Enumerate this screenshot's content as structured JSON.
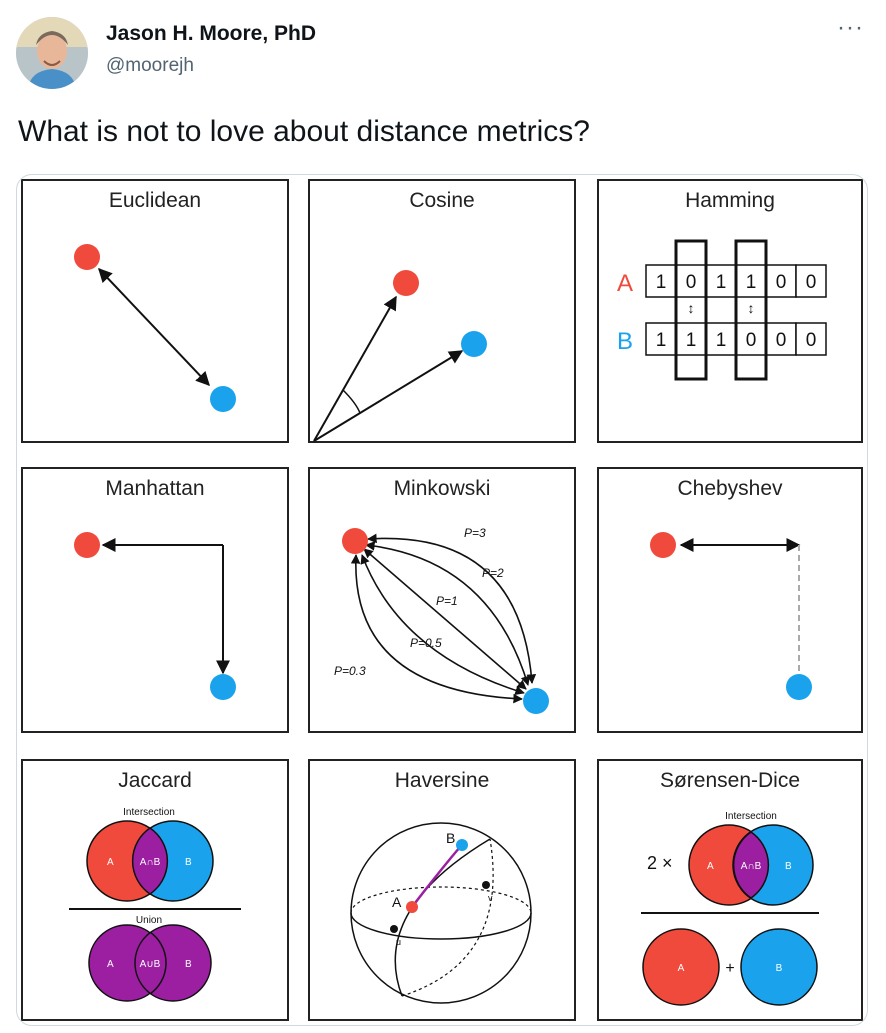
{
  "author": {
    "name": "Jason H. Moore, PhD",
    "handle": "@moorejh"
  },
  "more_label": "···",
  "tweet_text": "What is not to love about distance metrics?",
  "panels": {
    "euclidean": {
      "title": "Euclidean"
    },
    "cosine": {
      "title": "Cosine"
    },
    "hamming": {
      "title": "Hamming",
      "row_a_label": "A",
      "row_b_label": "B",
      "row_a": [
        "1",
        "0",
        "1",
        "1",
        "0",
        "0"
      ],
      "row_b": [
        "1",
        "1",
        "1",
        "0",
        "0",
        "0"
      ]
    },
    "manhattan": {
      "title": "Manhattan"
    },
    "minkowski": {
      "title": "Minkowski",
      "p3": "P=3",
      "p2": "P=2",
      "p1": "P=1",
      "p05": "P=0.5",
      "p03": "P=0.3"
    },
    "chebyshev": {
      "title": "Chebyshev"
    },
    "jaccard": {
      "title": "Jaccard",
      "intersection_label": "Intersection",
      "union_label": "Union",
      "a": "A",
      "b": "B",
      "a_and_b": "A∩B",
      "a_or_b": "A∪B"
    },
    "haversine": {
      "title": "Haversine",
      "a": "A",
      "b": "B",
      "u": "u",
      "v": "v"
    },
    "sorensen": {
      "title": "Sørensen-Dice",
      "intersection_label": "Intersection",
      "two_times": "2 ×",
      "a": "A",
      "b": "B",
      "a_and_b": "A∩B",
      "plus": "+"
    }
  },
  "colors": {
    "red": "#f04a3c",
    "blue": "#1aa3ec",
    "purple": "#9b1fa0"
  }
}
